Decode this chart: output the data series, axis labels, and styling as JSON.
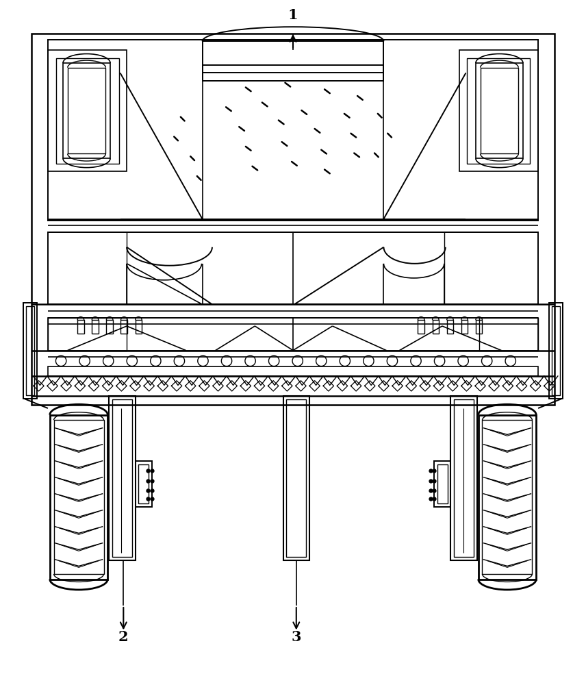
{
  "bg_color": "#ffffff",
  "line_color": "#000000",
  "fig_width": 8.56,
  "fig_height": 10.0,
  "dpi": 100
}
